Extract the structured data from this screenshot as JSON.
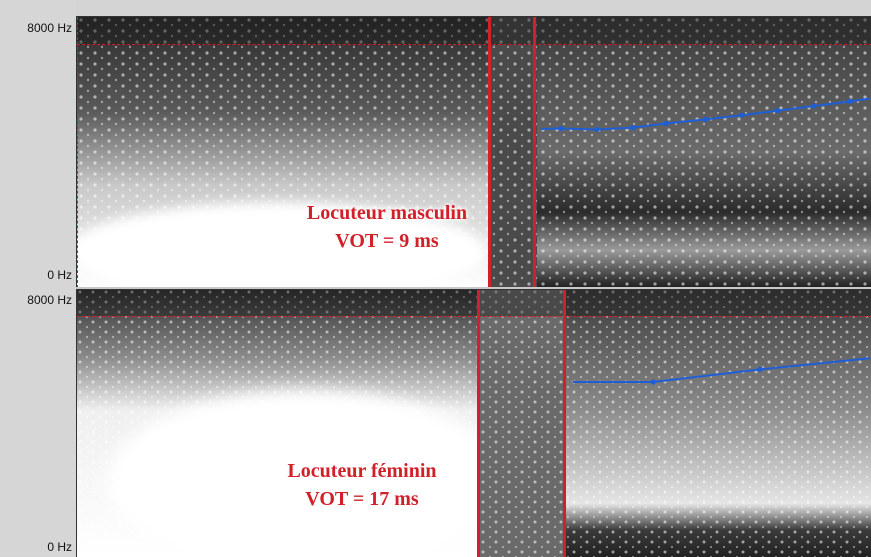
{
  "panels": [
    {
      "id": "top",
      "freq_max_label": "8000 Hz",
      "freq_min_label": "0 Hz",
      "caption_line1": "Locuteur masculin",
      "caption_line2": "VOT = 9 ms",
      "pitch_points": [
        {
          "t": 0.0,
          "v": 0.0
        },
        {
          "t": 0.06,
          "v": 0.01
        },
        {
          "t": 0.17,
          "v": -0.01
        },
        {
          "t": 0.28,
          "v": 0.03
        },
        {
          "t": 0.38,
          "v": 0.12
        },
        {
          "t": 0.5,
          "v": 0.21
        },
        {
          "t": 0.61,
          "v": 0.3
        },
        {
          "t": 0.72,
          "v": 0.4
        },
        {
          "t": 0.83,
          "v": 0.5
        },
        {
          "t": 0.94,
          "v": 0.6
        },
        {
          "t": 1.0,
          "v": 0.66
        }
      ]
    },
    {
      "id": "bottom",
      "freq_max_label": "8000 Hz",
      "freq_min_label": "0 Hz",
      "caption_line1": "Locuteur féminin",
      "caption_line2": "VOT = 17 ms",
      "pitch_points": [
        {
          "t": 0.0,
          "v": 0.0
        },
        {
          "t": 0.27,
          "v": 0.0
        },
        {
          "t": 0.63,
          "v": 0.35
        },
        {
          "t": 1.0,
          "v": 0.66
        }
      ]
    }
  ],
  "colors": {
    "marker_red": "#d2202a",
    "pitch_blue": "#1f5fd6",
    "axis_bg": "#d6d6d6"
  }
}
